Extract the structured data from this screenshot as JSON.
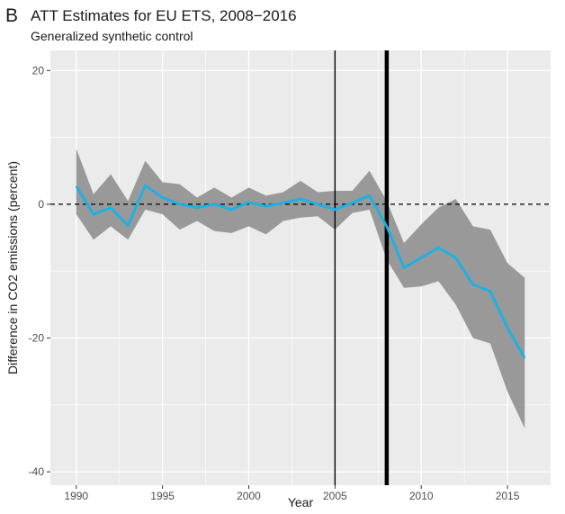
{
  "panel_label": "B",
  "chart_data": {
    "type": "line",
    "title": "ATT Estimates for EU ETS, 2008−2016",
    "subtitle": "Generalized synthetic control",
    "xlabel": "Year",
    "ylabel": "Difference in CO2 emissions (percent)",
    "xlim": [
      1988.5,
      2017.5
    ],
    "ylim": [
      -42,
      23
    ],
    "x_ticks": [
      1990,
      1995,
      2000,
      2005,
      2010,
      2015
    ],
    "x_tick_labels": [
      "1990",
      "1995",
      "2000",
      "2005",
      "2010",
      "2015"
    ],
    "y_ticks": [
      20,
      0,
      -20,
      -40
    ],
    "y_tick_labels": [
      "20",
      "0",
      "-20",
      "-40"
    ],
    "grid": true,
    "legend": "none",
    "x": [
      1990,
      1991,
      1992,
      1993,
      1994,
      1995,
      1996,
      1997,
      1998,
      1999,
      2000,
      2001,
      2002,
      2003,
      2004,
      2005,
      2006,
      2007,
      2008,
      2009,
      2010,
      2011,
      2012,
      2013,
      2014,
      2015,
      2016
    ],
    "series": [
      {
        "values": [
          2.7,
          -1.5,
          -0.5,
          -3.2,
          2.8,
          1.0,
          0.0,
          -0.5,
          0.0,
          -0.8,
          0.3,
          -0.3,
          0.2,
          0.8,
          0.0,
          -0.8,
          0.2,
          1.3,
          -3.3,
          -9.5,
          -8.0,
          -6.5,
          -8.0,
          -12.0,
          -13.0,
          -18.5,
          -23.0
        ],
        "lower": [
          -1.5,
          -5.3,
          -3.3,
          -5.3,
          -0.8,
          -1.5,
          -3.8,
          -2.5,
          -4.0,
          -4.3,
          -3.3,
          -4.5,
          -2.5,
          -2.0,
          -1.8,
          -3.8,
          -1.3,
          -0.8,
          -8.3,
          -12.5,
          -12.3,
          -11.5,
          -15.0,
          -20.0,
          -20.8,
          -28.0,
          -33.5
        ],
        "upper": [
          8.3,
          1.5,
          4.5,
          0.5,
          6.5,
          3.3,
          3.0,
          1.0,
          2.5,
          1.0,
          2.5,
          1.3,
          1.8,
          3.5,
          1.8,
          2.0,
          2.0,
          5.0,
          0.5,
          -5.8,
          -3.0,
          -0.5,
          0.8,
          -3.3,
          -3.8,
          -8.8,
          -11.0
        ]
      }
    ],
    "reference_hline": 0,
    "reference_vlines": [
      {
        "x": 2005,
        "style": "thin"
      },
      {
        "x": 2008,
        "style": "thick"
      }
    ],
    "colors": {
      "panel_background": "#ebebeb",
      "grid_line": "#ffffff",
      "band": "#999999",
      "line": "#17b2e6",
      "vline": "#000000",
      "hline": "#000000"
    }
  }
}
